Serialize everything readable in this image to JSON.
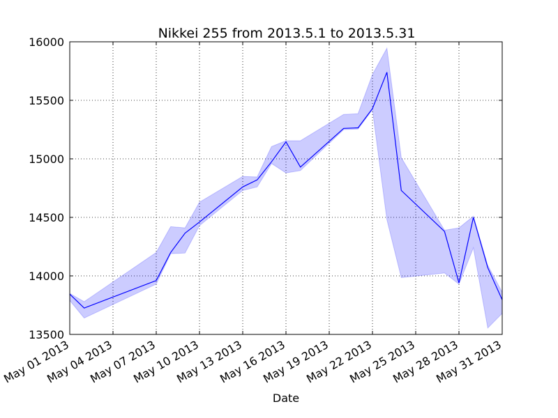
{
  "chart_data": {
    "type": "area",
    "title": "Nikkei 255 from 2013.5.1 to 2013.5.31",
    "xlabel": "Date",
    "ylabel": "",
    "grid": true,
    "ylim": [
      13500,
      16000
    ],
    "xlim": [
      "2013-05-01",
      "2013-05-31"
    ],
    "y_ticks": [
      13500,
      14000,
      14500,
      15000,
      15500,
      16000
    ],
    "x_ticks": [
      "May 01 2013",
      "May 04 2013",
      "May 07 2013",
      "May 10 2013",
      "May 13 2013",
      "May 16 2013",
      "May 19 2013",
      "May 22 2013",
      "May 25 2013",
      "May 28 2013",
      "May 31 2013"
    ],
    "line_color": "#0000ff",
    "band_color": "#0000ff",
    "series": [
      {
        "values": [
          {
            "x": "2013-05-01",
            "close": 13844,
            "low": 13790,
            "high": 13850
          },
          {
            "x": "2013-05-02",
            "close": 13725,
            "low": 13640,
            "high": 13780
          },
          {
            "x": "2013-05-07",
            "close": 13960,
            "low": 13930,
            "high": 14200
          },
          {
            "x": "2013-05-08",
            "close": 14200,
            "low": 14190,
            "high": 14420
          },
          {
            "x": "2013-05-09",
            "close": 14365,
            "low": 14195,
            "high": 14410
          },
          {
            "x": "2013-05-10",
            "close": 14460,
            "low": 14430,
            "high": 14630
          },
          {
            "x": "2013-05-13",
            "close": 14760,
            "low": 14730,
            "high": 14850
          },
          {
            "x": "2013-05-14",
            "close": 14820,
            "low": 14760,
            "high": 14845
          },
          {
            "x": "2013-05-15",
            "close": 14975,
            "low": 14960,
            "high": 15105
          },
          {
            "x": "2013-05-16",
            "close": 15145,
            "low": 14880,
            "high": 15155
          },
          {
            "x": "2013-05-17",
            "close": 14930,
            "low": 14900,
            "high": 15155
          },
          {
            "x": "2013-05-20",
            "close": 15260,
            "low": 15250,
            "high": 15380
          },
          {
            "x": "2013-05-21",
            "close": 15265,
            "low": 15255,
            "high": 15385
          },
          {
            "x": "2013-05-22",
            "close": 15430,
            "low": 15420,
            "high": 15720
          },
          {
            "x": "2013-05-23",
            "close": 15740,
            "low": 14480,
            "high": 15945
          },
          {
            "x": "2013-05-24",
            "close": 14730,
            "low": 13985,
            "high": 15010
          },
          {
            "x": "2013-05-27",
            "close": 14380,
            "low": 14025,
            "high": 14390
          },
          {
            "x": "2013-05-28",
            "close": 13940,
            "low": 13930,
            "high": 14410
          },
          {
            "x": "2013-05-29",
            "close": 14500,
            "low": 14240,
            "high": 14510
          },
          {
            "x": "2013-05-30",
            "close": 14070,
            "low": 13555,
            "high": 14090
          },
          {
            "x": "2013-05-31",
            "close": 13795,
            "low": 13680,
            "high": 13860
          }
        ]
      }
    ]
  }
}
